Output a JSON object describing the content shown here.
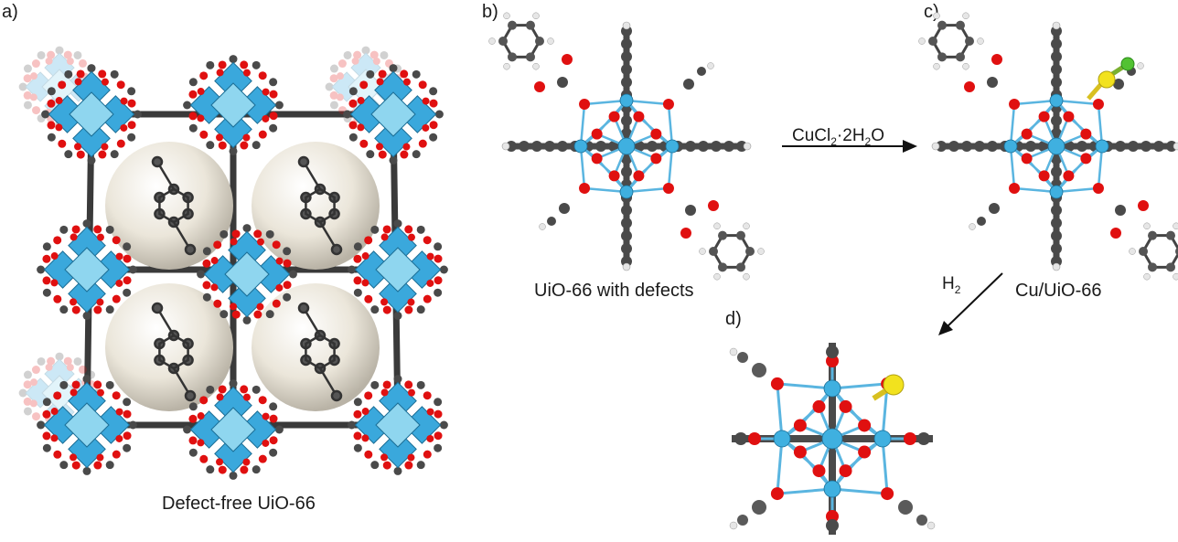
{
  "panels": {
    "a": {
      "label": "a)",
      "caption": "Defect-free UiO-66"
    },
    "b": {
      "label": "b)",
      "caption": "UiO-66 with defects"
    },
    "c": {
      "label": "c)",
      "caption": "Cu/UiO-66"
    },
    "d": {
      "label": "d)"
    }
  },
  "arrows": {
    "reagent1": {
      "main": "CuCl",
      "sub1": "2",
      "mid": "·2H",
      "sub2": "2",
      "end": "O"
    },
    "reagent2": {
      "main": "H",
      "sub1": "2"
    }
  },
  "colors": {
    "zirconium": "#3fb0e0",
    "oxygen": "#e01010",
    "carbon": "#4a4a4a",
    "hydrogen": "#e6e6e6",
    "sulfur": "#f0e020",
    "chlorine": "#50c030",
    "pore_sphere": "#ebe6da",
    "polyhedron": "#3aa8dc"
  }
}
